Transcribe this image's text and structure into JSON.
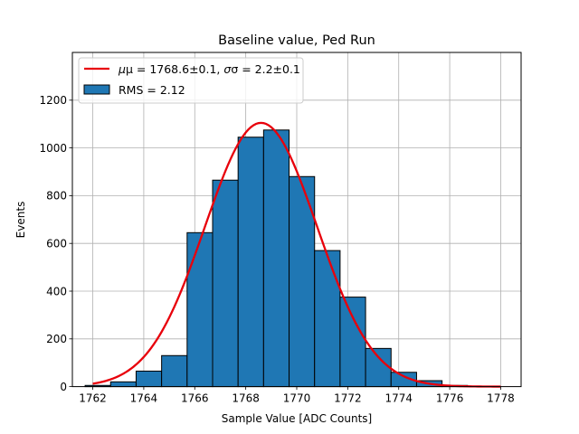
{
  "chart_data": {
    "type": "bar",
    "title": "Baseline value, Ped Run",
    "xlabel": "Sample Value [ADC Counts]",
    "ylabel": "Events",
    "xlim": [
      1761.2,
      1778.8
    ],
    "ylim": [
      0,
      1400
    ],
    "x_ticks": [
      1762,
      1764,
      1766,
      1768,
      1770,
      1772,
      1774,
      1776,
      1778
    ],
    "y_ticks": [
      0,
      200,
      400,
      600,
      800,
      1000,
      1200
    ],
    "grid": true,
    "legend_position": "top-left",
    "histogram": {
      "name": "RMS = 2.12",
      "color": "#1f77b4",
      "edge_color": "#000000",
      "bin_edges": [
        1761.7,
        1762.7,
        1763.7,
        1764.7,
        1765.7,
        1766.7,
        1767.7,
        1768.7,
        1769.7,
        1770.7,
        1771.7,
        1772.7,
        1773.7,
        1774.7,
        1775.7,
        1776.7,
        1777.7
      ],
      "values": [
        5,
        20,
        65,
        130,
        645,
        865,
        1045,
        1075,
        880,
        570,
        375,
        160,
        60,
        25,
        5,
        2
      ]
    },
    "fit": {
      "name_prefix": "μ = 1768.6±0.1, ",
      "name_suffix": "σ = 2.2±0.1",
      "color": "#e8000b",
      "mu": 1768.6,
      "sigma": 2.2,
      "amplitude": 1105,
      "x_range": [
        1762,
        1778
      ]
    }
  }
}
